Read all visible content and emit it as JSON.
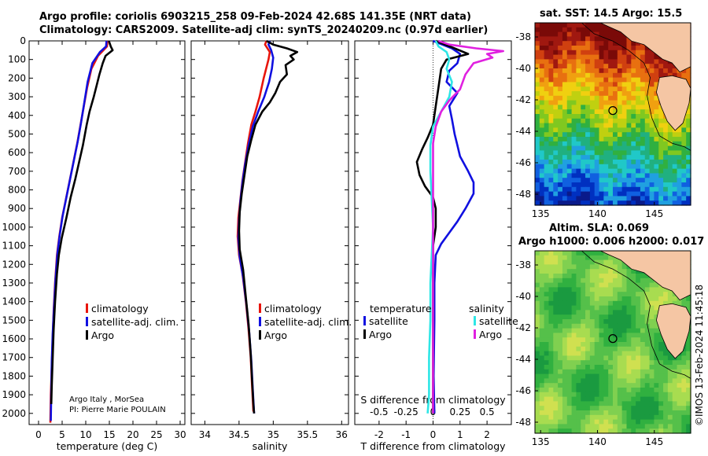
{
  "header": {
    "line1": "Argo profile: coriolis 6903215_258 09-Feb-2024 42.68S 141.35E (NRT data)",
    "line2": "Climatology: CARS2009. Satellite-adj clim: synTS_20240209.nc (0.97d earlier)"
  },
  "credit": {
    "line1": "Argo Italy , MorSea",
    "line2": "PI: Pierre Marie POULAIN"
  },
  "stamp": "©IMOS 13-Feb-2024 11:45:18",
  "sst_map": {
    "title": "sat. SST: 14.5 Argo: 15.5"
  },
  "sla_map": {
    "title1": "Altim. SLA: 0.069",
    "title2": "Argo h1000: 0.006 h2000: 0.017"
  },
  "colors": {
    "climatology": "#e8150c",
    "satellite": "#1010e0",
    "argo": "#000000",
    "sal_sat": "#2ee6e6",
    "sal_argo": "#e020e0"
  },
  "chart_data": [
    {
      "type": "line",
      "title": "",
      "xlabel": "temperature (deg C)",
      "ylabel": "",
      "xlim": [
        -2,
        31
      ],
      "ylim": [
        2060,
        0
      ],
      "xticks": [
        0,
        5,
        10,
        15,
        20,
        25,
        30
      ],
      "yticks": [
        0,
        100,
        200,
        300,
        400,
        500,
        600,
        700,
        800,
        900,
        1000,
        1100,
        1200,
        1300,
        1400,
        1500,
        1600,
        1700,
        1800,
        1900,
        2000
      ],
      "legend": [
        "climatology",
        "satellite-adj. clim.",
        "Argo"
      ],
      "series": [
        {
          "name": "climatology",
          "color": "#e8150c",
          "points": [
            [
              14.6,
              0
            ],
            [
              14.5,
              30
            ],
            [
              12.6,
              80
            ],
            [
              11.2,
              150
            ],
            [
              10.3,
              250
            ],
            [
              9.6,
              350
            ],
            [
              8.9,
              450
            ],
            [
              8.2,
              550
            ],
            [
              7.4,
              650
            ],
            [
              6.6,
              750
            ],
            [
              5.8,
              850
            ],
            [
              5.0,
              950
            ],
            [
              4.4,
              1050
            ],
            [
              3.9,
              1150
            ],
            [
              3.5,
              1300
            ],
            [
              3.2,
              1450
            ],
            [
              3.0,
              1600
            ],
            [
              2.8,
              1750
            ],
            [
              2.6,
              1900
            ],
            [
              2.5,
              2050
            ]
          ]
        },
        {
          "name": "satellite-adj. clim.",
          "color": "#1010e0",
          "points": [
            [
              14.4,
              0
            ],
            [
              14.3,
              30
            ],
            [
              13.0,
              60
            ],
            [
              11.4,
              120
            ],
            [
              10.4,
              220
            ],
            [
              9.7,
              330
            ],
            [
              9.0,
              440
            ],
            [
              8.3,
              540
            ],
            [
              7.5,
              640
            ],
            [
              6.7,
              740
            ],
            [
              5.9,
              840
            ],
            [
              5.1,
              940
            ],
            [
              4.5,
              1040
            ],
            [
              4.0,
              1140
            ],
            [
              3.6,
              1280
            ],
            [
              3.3,
              1420
            ],
            [
              3.0,
              1570
            ],
            [
              2.8,
              1720
            ],
            [
              2.7,
              1870
            ],
            [
              2.6,
              2040
            ]
          ]
        },
        {
          "name": "Argo",
          "color": "#000000",
          "points": [
            [
              14.9,
              0
            ],
            [
              15.3,
              30
            ],
            [
              15.7,
              50
            ],
            [
              14.2,
              80
            ],
            [
              13.6,
              120
            ],
            [
              12.9,
              180
            ],
            [
              12.3,
              240
            ],
            [
              11.7,
              300
            ],
            [
              10.8,
              380
            ],
            [
              10.2,
              450
            ],
            [
              9.4,
              560
            ],
            [
              8.6,
              650
            ],
            [
              7.8,
              740
            ],
            [
              6.8,
              840
            ],
            [
              5.9,
              950
            ],
            [
              4.9,
              1060
            ],
            [
              4.3,
              1150
            ],
            [
              3.9,
              1250
            ],
            [
              3.5,
              1400
            ],
            [
              3.2,
              1550
            ],
            [
              3.0,
              1700
            ],
            [
              2.8,
              1850
            ],
            [
              2.7,
              1950
            ]
          ]
        }
      ]
    },
    {
      "type": "line",
      "title": "",
      "xlabel": "salinity",
      "ylabel": "",
      "xlim": [
        33.8,
        36.1
      ],
      "ylim": [
        2060,
        0
      ],
      "xticks": [
        34,
        34.5,
        35,
        35.5,
        36
      ],
      "legend": [
        "climatology",
        "satellite-adj. clim.",
        "Argo"
      ],
      "series": [
        {
          "name": "climatology",
          "color": "#e8150c",
          "points": [
            [
              34.9,
              0
            ],
            [
              34.88,
              20
            ],
            [
              34.95,
              60
            ],
            [
              34.93,
              100
            ],
            [
              34.86,
              200
            ],
            [
              34.8,
              300
            ],
            [
              34.74,
              380
            ],
            [
              34.68,
              450
            ],
            [
              34.63,
              550
            ],
            [
              34.59,
              650
            ],
            [
              34.55,
              750
            ],
            [
              34.52,
              850
            ],
            [
              34.49,
              950
            ],
            [
              34.48,
              1050
            ],
            [
              34.5,
              1150
            ],
            [
              34.55,
              1250
            ],
            [
              34.6,
              1400
            ],
            [
              34.64,
              1550
            ],
            [
              34.67,
              1700
            ],
            [
              34.69,
              1850
            ],
            [
              34.71,
              1990
            ]
          ]
        },
        {
          "name": "satellite-adj. clim.",
          "color": "#1010e0",
          "points": [
            [
              34.95,
              0
            ],
            [
              34.93,
              20
            ],
            [
              34.97,
              50
            ],
            [
              35.0,
              90
            ],
            [
              34.98,
              150
            ],
            [
              34.94,
              220
            ],
            [
              34.87,
              300
            ],
            [
              34.78,
              380
            ],
            [
              34.7,
              460
            ],
            [
              34.64,
              560
            ],
            [
              34.59,
              660
            ],
            [
              34.55,
              760
            ],
            [
              34.52,
              860
            ],
            [
              34.5,
              960
            ],
            [
              34.49,
              1060
            ],
            [
              34.51,
              1160
            ],
            [
              34.56,
              1270
            ],
            [
              34.61,
              1420
            ],
            [
              34.65,
              1570
            ],
            [
              34.68,
              1720
            ],
            [
              34.7,
              1870
            ],
            [
              34.72,
              2000
            ]
          ]
        },
        {
          "name": "Argo",
          "color": "#000000",
          "points": [
            [
              34.9,
              0
            ],
            [
              35.0,
              20
            ],
            [
              35.2,
              40
            ],
            [
              35.35,
              60
            ],
            [
              35.25,
              80
            ],
            [
              35.3,
              100
            ],
            [
              35.18,
              130
            ],
            [
              35.2,
              180
            ],
            [
              35.1,
              220
            ],
            [
              35.03,
              280
            ],
            [
              34.95,
              330
            ],
            [
              34.84,
              380
            ],
            [
              34.74,
              450
            ],
            [
              34.68,
              530
            ],
            [
              34.62,
              620
            ],
            [
              34.58,
              720
            ],
            [
              34.54,
              820
            ],
            [
              34.51,
              920
            ],
            [
              34.5,
              1020
            ],
            [
              34.51,
              1120
            ],
            [
              34.56,
              1230
            ],
            [
              34.6,
              1380
            ],
            [
              34.64,
              1520
            ],
            [
              34.67,
              1680
            ],
            [
              34.69,
              1820
            ],
            [
              34.71,
              1950
            ],
            [
              34.72,
              2000
            ]
          ]
        }
      ]
    },
    {
      "type": "line",
      "title": "",
      "xlabel": "T difference from climatology",
      "ylabel": "",
      "top_xlabel": "S difference from climatology",
      "xlim": [
        -2.9,
        2.9
      ],
      "ylim": [
        2060,
        0
      ],
      "xticks": [
        -2,
        -1,
        0,
        1,
        2
      ],
      "top_xticks": [
        "-0.5",
        "-0.25",
        "0",
        "0.25",
        "0.5"
      ],
      "legend_temperature_title": "temperature",
      "legend_salinity_title": "salinity",
      "legend": [
        "satellite",
        "Argo",
        "satellite",
        "Argo"
      ],
      "series": [
        {
          "name": "satellite",
          "group": "temperature",
          "color": "#1010e0",
          "points": [
            [
              0,
              0
            ],
            [
              0.7,
              40
            ],
            [
              1.0,
              70
            ],
            [
              0.9,
              120
            ],
            [
              0.6,
              160
            ],
            [
              0.5,
              220
            ],
            [
              0.9,
              280
            ],
            [
              0.6,
              350
            ],
            [
              0.7,
              420
            ],
            [
              0.8,
              500
            ],
            [
              0.9,
              560
            ],
            [
              1.0,
              620
            ],
            [
              1.3,
              700
            ],
            [
              1.5,
              760
            ],
            [
              1.5,
              820
            ],
            [
              1.2,
              900
            ],
            [
              0.9,
              970
            ],
            [
              0.6,
              1030
            ],
            [
              0.3,
              1090
            ],
            [
              0.1,
              1150
            ],
            [
              0.05,
              1300
            ],
            [
              0.05,
              1500
            ],
            [
              0.02,
              1800
            ],
            [
              0.05,
              2000
            ]
          ]
        },
        {
          "name": "Argo",
          "group": "temperature",
          "color": "#000000",
          "points": [
            [
              0.1,
              0
            ],
            [
              0.8,
              40
            ],
            [
              1.3,
              70
            ],
            [
              0.5,
              100
            ],
            [
              0.3,
              150
            ],
            [
              0.2,
              250
            ],
            [
              0.1,
              350
            ],
            [
              0.0,
              450
            ],
            [
              -0.2,
              520
            ],
            [
              -0.4,
              580
            ],
            [
              -0.6,
              650
            ],
            [
              -0.5,
              720
            ],
            [
              -0.3,
              780
            ],
            [
              0.0,
              840
            ],
            [
              0.1,
              900
            ],
            [
              0.1,
              1000
            ],
            [
              0.0,
              1100
            ],
            [
              0.0,
              1300
            ],
            [
              0.0,
              1600
            ],
            [
              0.0,
              1900
            ],
            [
              0.0,
              2000
            ]
          ]
        },
        {
          "name": "satellite",
          "group": "salinity",
          "color": "#2ee6e6",
          "points": [
            [
              0.1,
              0
            ],
            [
              0.2,
              30
            ],
            [
              0.5,
              60
            ],
            [
              0.6,
              100
            ],
            [
              0.5,
              150
            ],
            [
              0.7,
              220
            ],
            [
              0.6,
              300
            ],
            [
              0.3,
              380
            ],
            [
              0.0,
              460
            ],
            [
              -0.1,
              560
            ],
            [
              -0.1,
              700
            ],
            [
              -0.05,
              850
            ],
            [
              0.0,
              1000
            ],
            [
              -0.05,
              1150
            ],
            [
              -0.1,
              1300
            ],
            [
              -0.1,
              1500
            ],
            [
              -0.15,
              1700
            ],
            [
              -0.15,
              1900
            ],
            [
              -0.2,
              2000
            ]
          ]
        },
        {
          "name": "Argo",
          "group": "salinity",
          "color": "#e020e0",
          "points": [
            [
              0.2,
              0
            ],
            [
              0.6,
              20
            ],
            [
              1.6,
              40
            ],
            [
              2.6,
              55
            ],
            [
              2.0,
              70
            ],
            [
              2.2,
              90
            ],
            [
              1.5,
              120
            ],
            [
              1.2,
              180
            ],
            [
              1.0,
              260
            ],
            [
              0.6,
              320
            ],
            [
              0.3,
              380
            ],
            [
              0.1,
              460
            ],
            [
              0.0,
              550
            ],
            [
              0.0,
              700
            ],
            [
              0.0,
              900
            ],
            [
              0.0,
              1100
            ],
            [
              0.0,
              1300
            ],
            [
              0.0,
              1500
            ],
            [
              0.0,
              1700
            ],
            [
              0.0,
              1900
            ],
            [
              0.0,
              2000
            ]
          ]
        }
      ]
    }
  ],
  "maps": {
    "yticks": [
      "-38",
      "-40",
      "-42",
      "-44",
      "-46",
      "-48"
    ],
    "xticks": [
      "135",
      "140",
      "145"
    ]
  }
}
